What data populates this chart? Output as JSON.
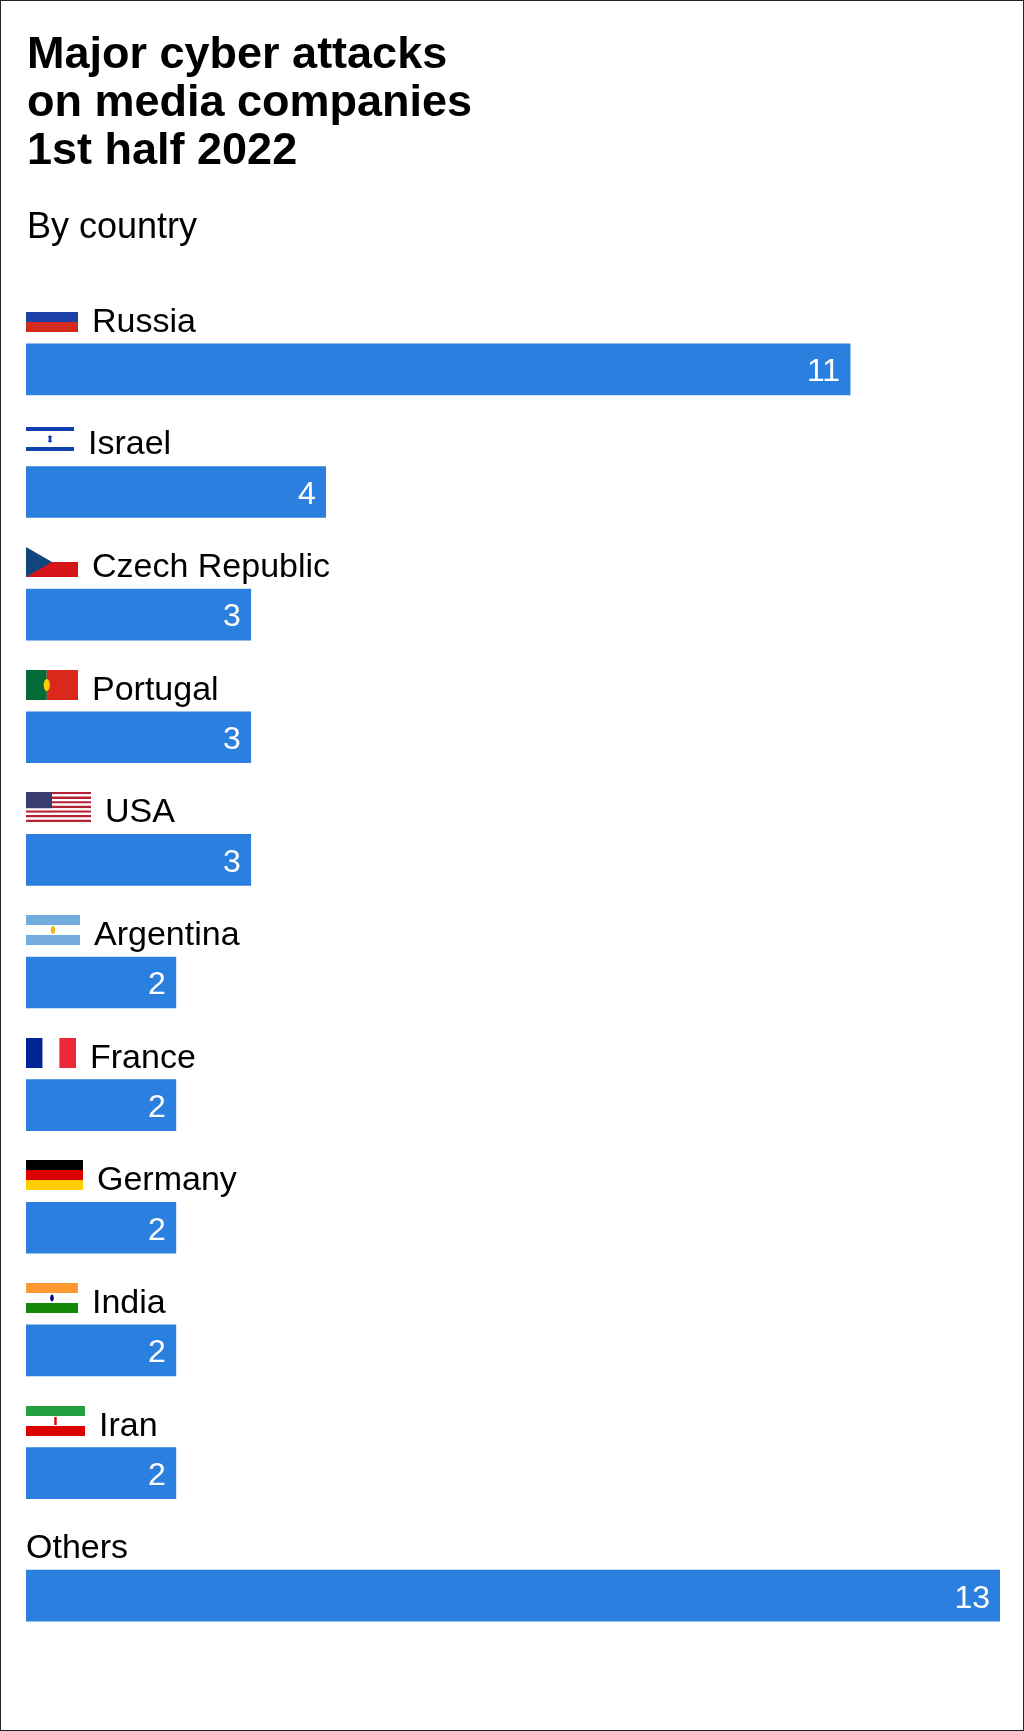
{
  "chart_data": {
    "type": "bar",
    "orientation": "horizontal",
    "title": "Major cyber attacks\non media companies\n1st half 2022",
    "subtitle": "By country",
    "categories": [
      "Russia",
      "Israel",
      "Czech Republic",
      "Portugal",
      "USA",
      "Argentina",
      "France",
      "Germany",
      "India",
      "Iran",
      "Others"
    ],
    "values": [
      11,
      4,
      3,
      3,
      3,
      2,
      2,
      2,
      2,
      2,
      13
    ],
    "color": "#2b7fde",
    "data_labels": true,
    "tick_labels": "y",
    "legend": false
  }
}
